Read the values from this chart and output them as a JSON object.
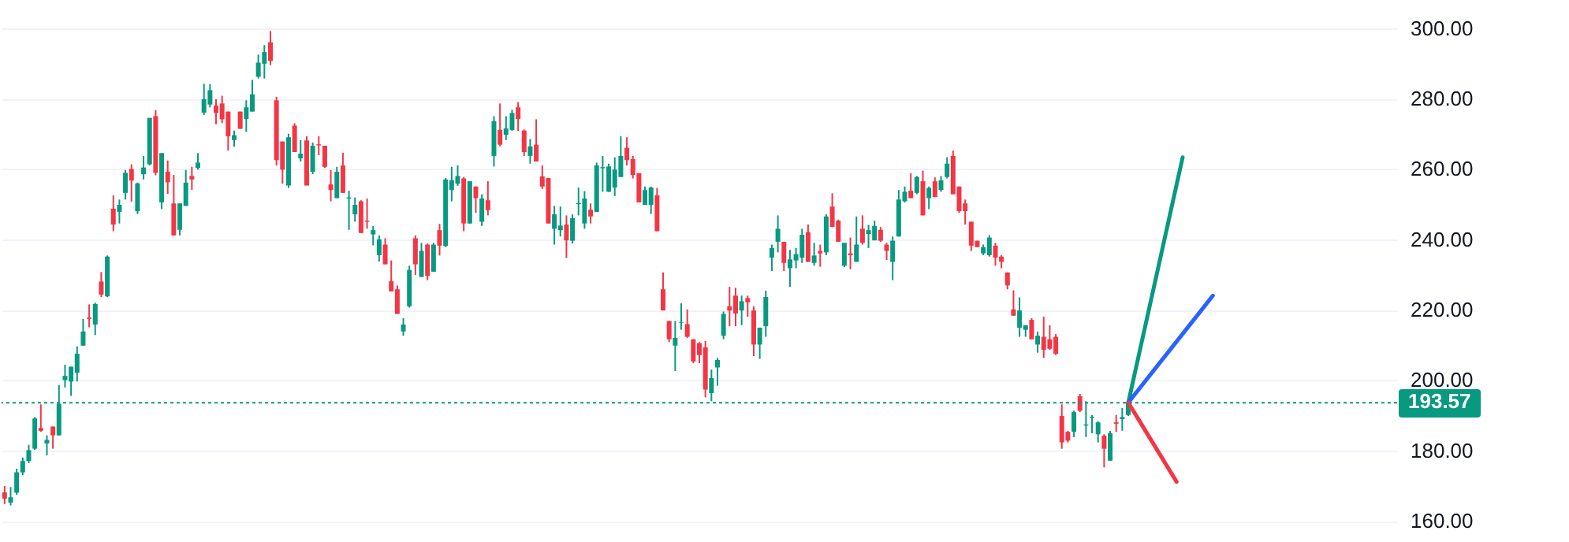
{
  "chart_data": {
    "type": "candlestick",
    "categories": [
      null,
      null,
      null,
      null,
      null,
      null,
      null,
      null,
      null,
      null,
      null,
      null,
      null,
      null,
      null,
      null,
      null,
      null,
      null,
      null,
      null,
      null,
      null,
      null,
      null,
      null,
      null,
      null,
      null,
      null,
      null,
      null,
      null,
      null,
      null,
      null,
      null,
      null,
      null,
      null,
      null,
      null,
      null,
      null,
      null,
      null,
      null,
      null,
      null,
      null,
      null,
      null,
      null,
      null,
      null,
      null,
      null,
      null,
      null,
      null,
      null,
      null,
      null,
      null,
      null,
      null,
      null,
      null,
      null,
      null,
      null,
      null,
      null,
      null,
      null,
      null,
      null,
      null,
      null,
      null,
      null,
      null,
      null,
      null,
      null,
      null,
      null,
      null,
      null,
      null,
      null,
      null,
      null,
      null,
      null,
      null,
      null,
      null,
      null,
      null,
      null,
      null,
      null,
      null,
      null,
      null,
      null,
      null,
      null,
      null,
      null,
      null,
      null,
      null,
      null,
      null,
      null,
      null,
      null,
      null,
      null,
      null,
      null,
      null,
      null,
      null,
      null,
      null,
      null,
      null,
      null,
      null,
      null,
      null,
      null,
      null,
      null,
      null,
      null,
      null,
      null,
      null,
      null,
      null,
      null,
      null,
      null,
      null,
      null,
      null,
      null,
      null,
      null,
      null,
      null,
      null,
      null,
      null,
      null,
      null,
      null,
      null,
      null,
      null,
      null,
      null,
      null,
      null,
      null,
      null,
      null,
      null,
      null,
      null,
      null,
      null,
      null,
      null,
      null,
      null,
      null,
      null,
      null,
      null,
      null,
      null,
      null,
      null,
      null,
      null,
      null,
      null,
      null,
      null,
      null,
      null,
      null,
      null,
      null,
      null,
      null,
      null,
      null,
      null,
      null,
      null,
      null,
      null,
      null,
      null,
      null,
      null,
      null,
      null,
      null,
      null,
      null,
      null,
      null,
      null,
      null,
      null,
      null,
      null,
      null,
      null,
      null,
      null,
      null,
      null,
      null
    ],
    "ohlc": [
      [
        168.1,
        169.9,
        164.8,
        166.3
      ],
      [
        165.2,
        169.6,
        164.4,
        166.7
      ],
      [
        168.0,
        174.8,
        167.4,
        173.8
      ],
      [
        173.8,
        178,
        173,
        177.0
      ],
      [
        177.0,
        181.6,
        176.4,
        180.1
      ],
      [
        180.5,
        189.5,
        180.2,
        189.1
      ],
      [
        186.4,
        193.1,
        185.3,
        185.6
      ],
      [
        182.0,
        184.3,
        178.6,
        183.0
      ],
      [
        186.8,
        186.8,
        180.5,
        184.3
      ],
      [
        184.3,
        198.6,
        184.3,
        193.3
      ],
      [
        200.0,
        204.4,
        197.9,
        201.2
      ],
      [
        199.6,
        203.8,
        195.5,
        203.8
      ],
      [
        202.1,
        209.6,
        199.6,
        207.5
      ],
      [
        209.8,
        217.4,
        209.8,
        213.8
      ],
      [
        217.8,
        221.5,
        215.0,
        217.4
      ],
      [
        215.8,
        222.0,
        212.8,
        221.6
      ],
      [
        228.0,
        230.7,
        223.6,
        224.3
      ],
      [
        223.8,
        235.4,
        223.6,
        235.1
      ],
      [
        248.7,
        252.5,
        242.3,
        244.2
      ],
      [
        247.8,
        251.3,
        244.5,
        249.8
      ],
      [
        253.2,
        259.7,
        251.3,
        258.9
      ],
      [
        260.0,
        261.3,
        250.7,
        256.7
      ],
      [
        248.0,
        256.1,
        247.2,
        255.9
      ],
      [
        258.5,
        263.7,
        257.0,
        260.4
      ],
      [
        261.3,
        274.5,
        261.0,
        274.5
      ],
      [
        275.0,
        276.7,
        258.2,
        258.9
      ],
      [
        250.5,
        264.5,
        248.6,
        264.5
      ],
      [
        259.2,
        262.4,
        252.9,
        256.2
      ],
      [
        250.2,
        258.3,
        241.1,
        241.1
      ],
      [
        242.7,
        250.2,
        241.1,
        250.2
      ],
      [
        249.5,
        259.7,
        249.5,
        256.1
      ],
      [
        258.0,
        260.6,
        254.0,
        257.0
      ],
      [
        260.3,
        264.5,
        259.8,
        261.8
      ],
      [
        276.0,
        284.2,
        275.3,
        279.8
      ],
      [
        278.3,
        284.1,
        277.5,
        282.4
      ],
      [
        278.0,
        279.8,
        272.7,
        275.9
      ],
      [
        278.6,
        280.8,
        273.0,
        274.1
      ],
      [
        276.3,
        276.3,
        265.2,
        269.3
      ],
      [
        268.2,
        270.9,
        266.3,
        269.6
      ],
      [
        276.3,
        276.3,
        271.4,
        271.4
      ],
      [
        274.2,
        279.5,
        270.5,
        277.5
      ],
      [
        276.3,
        285.3,
        276.3,
        281.2
      ],
      [
        286.2,
        292.5,
        285.7,
        290.2
      ],
      [
        289.9,
        295.2,
        285.7,
        293.2
      ],
      [
        296.0,
        299.2,
        289.5,
        290.7
      ],
      [
        279.5,
        280.5,
        261.0,
        262.5
      ],
      [
        267.8,
        267.8,
        255.8,
        259.8
      ],
      [
        255.3,
        270.0,
        254.6,
        269.0
      ],
      [
        272.3,
        273.0,
        264.8,
        264.8
      ],
      [
        263.0,
        268.2,
        262.1,
        264.3
      ],
      [
        268.1,
        269.3,
        255.3,
        255.3
      ],
      [
        259.2,
        267.5,
        258.5,
        266.6
      ],
      [
        267.0,
        269.3,
        263.9,
        266.7
      ],
      [
        266.6,
        266.6,
        260.3,
        260.6
      ],
      [
        255.6,
        259.7,
        250.8,
        254.0
      ],
      [
        251.7,
        260.6,
        251.7,
        259.2
      ],
      [
        261.0,
        264.6,
        253.2,
        253.2
      ],
      [
        251.6,
        253.8,
        242.7,
        251.9
      ],
      [
        247.1,
        251.9,
        245.0,
        249.8
      ],
      [
        250.8,
        251.1,
        241.8,
        241.8
      ],
      [
        245.3,
        251.6,
        243.0,
        245.0
      ],
      [
        241.4,
        243.8,
        238.3,
        242.6
      ],
      [
        235.5,
        241.1,
        233.7,
        240.0
      ],
      [
        238.5,
        240.3,
        232.9,
        232.9
      ],
      [
        228.1,
        234.0,
        225.2,
        225.2
      ],
      [
        225.8,
        226.9,
        218.8,
        218.8
      ],
      [
        213.8,
        217.6,
        212.6,
        215.8
      ],
      [
        221.0,
        232.5,
        220.6,
        231.3
      ],
      [
        240.3,
        241.1,
        229.9,
        232.9
      ],
      [
        229.3,
        239.0,
        229.3,
        236.7
      ],
      [
        238.5,
        238.8,
        228.4,
        229.6
      ],
      [
        230.8,
        239.0,
        230.8,
        238.5
      ],
      [
        242.6,
        244.4,
        235.4,
        238.2
      ],
      [
        238.1,
        257.4,
        237.8,
        257.0
      ],
      [
        254.0,
        260.6,
        250.8,
        256.8
      ],
      [
        255.8,
        261.0,
        255.2,
        258.0
      ],
      [
        257.3,
        257.7,
        242.3,
        244.5
      ],
      [
        244.5,
        256.5,
        244.5,
        256.5
      ],
      [
        255.0,
        255.0,
        247.5,
        251.7
      ],
      [
        245.0,
        252.8,
        243.8,
        251.6
      ],
      [
        251.1,
        256.5,
        246.8,
        248.3
      ],
      [
        263.7,
        275.0,
        260.7,
        273.6
      ],
      [
        271.1,
        278.6,
        266.4,
        266.9
      ],
      [
        269.7,
        275.0,
        268.2,
        271.5
      ],
      [
        271.1,
        276.8,
        270.8,
        275.9
      ],
      [
        277.5,
        279.0,
        270.8,
        274.2
      ],
      [
        270.9,
        271.2,
        263.7,
        264.8
      ],
      [
        263.7,
        268.5,
        261.5,
        266.4
      ],
      [
        266.9,
        274.1,
        262.1,
        262.1
      ],
      [
        257.9,
        261.0,
        254.3,
        255.0
      ],
      [
        257.4,
        257.4,
        244.5,
        244.5
      ],
      [
        243.0,
        249.5,
        238.5,
        247.1
      ],
      [
        242.6,
        249.3,
        240.8,
        243.9
      ],
      [
        244.2,
        246.8,
        234.7,
        239.7
      ],
      [
        239.6,
        247.1,
        238.8,
        246.0
      ],
      [
        250.0,
        254.7,
        246.8,
        250.3
      ],
      [
        244.5,
        253.7,
        243.0,
        251.6
      ],
      [
        248.4,
        250.2,
        244.5,
        246.5
      ],
      [
        247.8,
        261.8,
        247.8,
        261.0
      ],
      [
        260.2,
        263.7,
        253.5,
        260.5
      ],
      [
        253.5,
        261.5,
        253.5,
        260.7
      ],
      [
        254.7,
        263.3,
        252.3,
        259.8
      ],
      [
        257.7,
        269.3,
        257.7,
        263.7
      ],
      [
        266.0,
        269.0,
        261.0,
        262.5
      ],
      [
        262.8,
        263.7,
        257.3,
        258.3
      ],
      [
        258.8,
        258.8,
        250.5,
        250.5
      ],
      [
        249.8,
        255.0,
        249.8,
        254.0
      ],
      [
        249.8,
        255.0,
        247.2,
        254.7
      ],
      [
        252.5,
        254.6,
        242.3,
        242.3
      ],
      [
        225.8,
        230.6,
        219.8,
        219.8
      ],
      [
        216.8,
        216.8,
        210.8,
        211.6
      ],
      [
        209.8,
        216.8,
        202.6,
        212.0
      ],
      [
        216.3,
        221.8,
        214.3,
        216.5
      ],
      [
        215.9,
        220.1,
        212.0,
        212.3
      ],
      [
        211.6,
        211.6,
        204.8,
        205.3
      ],
      [
        210.5,
        210.8,
        204.8,
        207.1
      ],
      [
        209.3,
        211.1,
        195.1,
        197.3
      ],
      [
        196.3,
        203.0,
        194.0,
        200.6
      ],
      [
        203.6,
        206.3,
        198.4,
        205.7
      ],
      [
        212.6,
        219.5,
        211.6,
        218.8
      ],
      [
        221.0,
        226.5,
        215.3,
        219.8
      ],
      [
        224.0,
        226.2,
        215.3,
        218.9
      ],
      [
        219.8,
        224.0,
        215.6,
        222.4
      ],
      [
        223.3,
        224.0,
        218.0,
        222.1
      ],
      [
        219.8,
        221.0,
        206.8,
        210.1
      ],
      [
        210.1,
        214.9,
        206.0,
        214.9
      ],
      [
        215.3,
        225.4,
        212.3,
        223.6
      ],
      [
        234.8,
        238.5,
        231.0,
        237.5
      ],
      [
        239.3,
        246.8,
        236.3,
        243.0
      ],
      [
        239.3,
        239.3,
        231.0,
        233.3
      ],
      [
        231.8,
        237.0,
        226.5,
        234.3
      ],
      [
        234.0,
        237.5,
        231.8,
        235.8
      ],
      [
        234.8,
        243.0,
        233.3,
        241.3
      ],
      [
        242.0,
        244.2,
        233.6,
        233.6
      ],
      [
        233.3,
        239.0,
        232.5,
        235.4
      ],
      [
        236.7,
        238.5,
        232.2,
        236.0
      ],
      [
        236.3,
        247.1,
        235.5,
        246.5
      ],
      [
        249.3,
        253.1,
        243.5,
        243.5
      ],
      [
        245.3,
        245.6,
        239.3,
        239.3
      ],
      [
        232.5,
        239.0,
        232.1,
        239.0
      ],
      [
        236.0,
        240.5,
        231.5,
        235.5
      ],
      [
        233.6,
        246.5,
        233.6,
        238.5
      ],
      [
        243.0,
        246.8,
        238.5,
        239.0
      ],
      [
        241.5,
        244.1,
        237.5,
        242.6
      ],
      [
        239.7,
        245.3,
        239.7,
        243.8
      ],
      [
        242.7,
        243.5,
        239.3,
        239.6
      ],
      [
        238.5,
        239.0,
        234.1,
        236.7
      ],
      [
        233.6,
        240.8,
        228.4,
        239.6
      ],
      [
        240.8,
        254.0,
        240.8,
        251.3
      ],
      [
        250.8,
        255.0,
        250.5,
        253.5
      ],
      [
        253.8,
        258.8,
        251.7,
        251.7
      ],
      [
        253.2,
        258.0,
        252.8,
        257.7
      ],
      [
        256.5,
        259.5,
        246.8,
        246.8
      ],
      [
        251.7,
        255.0,
        248.6,
        254.6
      ],
      [
        256.5,
        257.6,
        252.0,
        252.0
      ],
      [
        254.0,
        258.0,
        253.5,
        256.8
      ],
      [
        257.7,
        263.3,
        257.3,
        261.5
      ],
      [
        263.7,
        265.2,
        252.8,
        252.8
      ],
      [
        255.0,
        255.0,
        247.5,
        248.0
      ],
      [
        250.2,
        251.3,
        244.2,
        248.0
      ],
      [
        245.0,
        245.0,
        236.7,
        238.2
      ],
      [
        239.6,
        239.6,
        237.8,
        237.8
      ],
      [
        236.0,
        238.5,
        235.5,
        237.8
      ],
      [
        235.5,
        241.2,
        235.1,
        240.5
      ],
      [
        238.2,
        239.0,
        232.5,
        234.8
      ],
      [
        235.1,
        235.5,
        231.8,
        233.6
      ],
      [
        230.6,
        230.6,
        225.8,
        226.9
      ],
      [
        220.1,
        225.5,
        218.3,
        218.3
      ],
      [
        214.9,
        223.5,
        212.3,
        219.8
      ],
      [
        214.3,
        215.6,
        212.3,
        215.6
      ],
      [
        217.1,
        217.6,
        211.6,
        211.6
      ],
      [
        210.1,
        213.8,
        207.8,
        212.6
      ],
      [
        212.3,
        218.0,
        206.3,
        208.6
      ],
      [
        211.6,
        215.6,
        208.6,
        208.9
      ],
      [
        212.3,
        213.1,
        207.1,
        207.5
      ],
      [
        189.8,
        193.1,
        180.5,
        182.3
      ],
      [
        185.3,
        185.6,
        182.3,
        182.8
      ],
      [
        185.3,
        191.3,
        183.8,
        190.9
      ],
      [
        195.4,
        196.1,
        190.9,
        191.3
      ],
      [
        187.1,
        194.0,
        183.8,
        187.4
      ],
      [
        189.3,
        190.1,
        184.9,
        189.6
      ],
      [
        184.6,
        188.3,
        182.3,
        188.0
      ],
      [
        184.2,
        184.6,
        175.2,
        180.5
      ],
      [
        177.1,
        185.6,
        177.1,
        184.9
      ],
      [
        188.0,
        190.1,
        185.3,
        187.6
      ],
      [
        188.9,
        192.1,
        185.6,
        189.5
      ],
      [
        190.1,
        194.3,
        189.8,
        193.57
      ],
      null,
      null,
      null,
      null,
      null,
      null,
      null,
      null,
      null,
      null,
      null,
      null,
      null,
      null,
      null,
      null,
      null,
      null,
      null,
      null,
      null,
      null,
      null,
      null,
      null,
      null,
      null,
      null,
      null,
      null,
      null,
      null,
      null,
      null,
      null,
      null,
      null,
      null,
      null,
      null,
      null,
      null,
      null,
      null
    ],
    "colors": [
      "#f23645",
      "#089981",
      "#089981",
      "#089981",
      "#089981",
      "#089981",
      "#f23645",
      "#089981",
      "#f23645",
      "#089981",
      "#089981",
      "#089981",
      "#089981",
      "#089981",
      "#f23645",
      "#089981",
      "#f23645",
      "#089981",
      "#f23645",
      "#089981",
      "#089981",
      "#f23645",
      "#089981",
      "#089981",
      "#089981",
      "#f23645",
      "#089981",
      "#f23645",
      "#f23645",
      "#089981",
      "#089981",
      "#f23645",
      "#089981",
      "#089981",
      "#089981",
      "#f23645",
      "#f23645",
      "#f23645",
      "#089981",
      "#f23645",
      "#089981",
      "#089981",
      "#089981",
      "#089981",
      "#f23645",
      "#f23645",
      "#f23645",
      "#089981",
      "#f23645",
      "#089981",
      "#f23645",
      "#089981",
      "#f23645",
      "#f23645",
      "#f23645",
      "#089981",
      "#f23645",
      "#089981",
      "#089981",
      "#f23645",
      "#f23645",
      "#089981",
      "#089981",
      "#f23645",
      "#f23645",
      "#f23645",
      "#089981",
      "#089981",
      "#f23645",
      "#089981",
      "#f23645",
      "#089981",
      "#f23645",
      "#089981",
      "#089981",
      "#089981",
      "#f23645",
      "#089981",
      "#f23645",
      "#089981",
      "#f23645",
      "#089981",
      "#f23645",
      "#089981",
      "#089981",
      "#f23645",
      "#f23645",
      "#089981",
      "#f23645",
      "#f23645",
      "#f23645",
      "#089981",
      "#089981",
      "#f23645",
      "#089981",
      "#089981",
      "#089981",
      "#f23645",
      "#089981",
      "#089981",
      "#089981",
      "#089981",
      "#089981",
      "#f23645",
      "#f23645",
      "#f23645",
      "#089981",
      "#089981",
      "#f23645",
      "#f23645",
      "#f23645",
      "#089981",
      "#089981",
      "#f23645",
      "#f23645",
      "#f23645",
      "#f23645",
      "#089981",
      "#089981",
      "#089981",
      "#f23645",
      "#f23645",
      "#089981",
      "#f23645",
      "#f23645",
      "#089981",
      "#089981",
      "#089981",
      "#089981",
      "#f23645",
      "#089981",
      "#089981",
      "#089981",
      "#f23645",
      "#089981",
      "#f23645",
      "#089981",
      "#f23645",
      "#f23645",
      "#089981",
      "#f23645",
      "#089981",
      "#f23645",
      "#089981",
      "#089981",
      "#f23645",
      "#f23645",
      "#089981",
      "#089981",
      "#089981",
      "#f23645",
      "#089981",
      "#f23645",
      "#089981",
      "#f23645",
      "#089981",
      "#089981",
      "#f23645",
      "#f23645",
      "#f23645",
      "#f23645",
      "#f23645",
      "#089981",
      "#089981",
      "#f23645",
      "#f23645",
      "#f23645",
      "#f23645",
      "#089981",
      "#089981",
      "#f23645",
      "#089981",
      "#f23645",
      "#f23645",
      "#f23645",
      "#f23645",
      "#f23645",
      "#089981",
      "#f23645",
      "#089981",
      "#089981",
      "#089981",
      "#f23645",
      "#089981",
      "#f23645",
      "#089981",
      "#089981",
      null,
      null,
      null,
      null,
      null,
      null,
      null,
      null,
      null,
      null,
      null,
      null,
      null,
      null,
      null,
      null,
      null,
      null,
      null,
      null,
      null,
      null,
      null,
      null,
      null,
      null,
      null,
      null,
      null,
      null,
      null,
      null,
      null,
      null,
      null,
      null,
      null,
      null,
      null,
      null,
      null,
      null,
      null,
      null
    ],
    "series": [
      {
        "type": "line",
        "color": "#089981",
        "values": [
          null,
          null,
          null,
          null,
          null,
          null,
          null,
          null,
          null,
          null,
          null,
          null,
          null,
          null,
          null,
          null,
          null,
          null,
          null,
          null,
          null,
          null,
          null,
          null,
          null,
          null,
          null,
          null,
          null,
          null,
          null,
          null,
          null,
          null,
          null,
          null,
          null,
          null,
          null,
          null,
          null,
          null,
          null,
          null,
          null,
          null,
          null,
          null,
          null,
          null,
          null,
          null,
          null,
          null,
          null,
          null,
          null,
          null,
          null,
          null,
          null,
          null,
          null,
          null,
          null,
          null,
          null,
          null,
          null,
          null,
          null,
          null,
          null,
          null,
          null,
          null,
          null,
          null,
          null,
          null,
          null,
          null,
          null,
          null,
          null,
          null,
          null,
          null,
          null,
          null,
          null,
          null,
          null,
          null,
          null,
          null,
          null,
          null,
          null,
          null,
          null,
          null,
          null,
          null,
          null,
          null,
          null,
          null,
          null,
          null,
          null,
          null,
          null,
          null,
          null,
          null,
          null,
          null,
          null,
          null,
          null,
          null,
          null,
          null,
          null,
          null,
          null,
          null,
          null,
          null,
          null,
          null,
          null,
          null,
          null,
          null,
          null,
          null,
          null,
          null,
          null,
          null,
          null,
          null,
          null,
          null,
          null,
          null,
          null,
          null,
          null,
          null,
          null,
          null,
          null,
          null,
          null,
          null,
          null,
          null,
          null,
          null,
          null,
          null,
          null,
          null,
          null,
          null,
          null,
          null,
          null,
          null,
          null,
          null,
          null,
          null,
          null,
          null,
          null,
          null,
          null,
          null,
          null,
          null,
          null,
          null,
          193.6,
          null,
          null,
          null,
          null,
          null,
          null,
          null,
          null,
          263.3,
          null,
          null,
          null,
          null,
          null,
          null,
          null,
          null,
          null,
          null,
          null,
          null,
          null,
          null,
          null,
          null,
          null,
          null,
          null,
          null,
          null,
          null,
          null,
          null,
          null,
          null,
          null,
          null,
          null,
          null,
          null,
          null,
          null,
          null,
          null
        ]
      },
      {
        "type": "line",
        "color": "#2962ff",
        "values": [
          null,
          null,
          null,
          null,
          null,
          null,
          null,
          null,
          null,
          null,
          null,
          null,
          null,
          null,
          null,
          null,
          null,
          null,
          null,
          null,
          null,
          null,
          null,
          null,
          null,
          null,
          null,
          null,
          null,
          null,
          null,
          null,
          null,
          null,
          null,
          null,
          null,
          null,
          null,
          null,
          null,
          null,
          null,
          null,
          null,
          null,
          null,
          null,
          null,
          null,
          null,
          null,
          null,
          null,
          null,
          null,
          null,
          null,
          null,
          null,
          null,
          null,
          null,
          null,
          null,
          null,
          null,
          null,
          null,
          null,
          null,
          null,
          null,
          null,
          null,
          null,
          null,
          null,
          null,
          null,
          null,
          null,
          null,
          null,
          null,
          null,
          null,
          null,
          null,
          null,
          null,
          null,
          null,
          null,
          null,
          null,
          null,
          null,
          null,
          null,
          null,
          null,
          null,
          null,
          null,
          null,
          null,
          null,
          null,
          null,
          null,
          null,
          null,
          null,
          null,
          null,
          null,
          null,
          null,
          null,
          null,
          null,
          null,
          null,
          null,
          null,
          null,
          null,
          null,
          null,
          null,
          null,
          null,
          null,
          null,
          null,
          null,
          null,
          null,
          null,
          null,
          null,
          null,
          null,
          null,
          null,
          null,
          null,
          null,
          null,
          null,
          null,
          null,
          null,
          null,
          null,
          null,
          null,
          null,
          null,
          null,
          null,
          null,
          null,
          null,
          null,
          null,
          null,
          null,
          null,
          null,
          null,
          null,
          null,
          null,
          null,
          null,
          null,
          null,
          null,
          null,
          null,
          null,
          null,
          null,
          null,
          193.6,
          null,
          null,
          null,
          null,
          null,
          null,
          null,
          null,
          null,
          null,
          null,
          null,
          null,
          224.0,
          null,
          null,
          null,
          null,
          null,
          null,
          null,
          null,
          null,
          null,
          null,
          null,
          null,
          null,
          null,
          null,
          null,
          null,
          null,
          null,
          null,
          null,
          null,
          null,
          null,
          null,
          null,
          null,
          null,
          null
        ]
      },
      {
        "type": "line",
        "color": "#f23645",
        "values": [
          null,
          null,
          null,
          null,
          null,
          null,
          null,
          null,
          null,
          null,
          null,
          null,
          null,
          null,
          null,
          null,
          null,
          null,
          null,
          null,
          null,
          null,
          null,
          null,
          null,
          null,
          null,
          null,
          null,
          null,
          null,
          null,
          null,
          null,
          null,
          null,
          null,
          null,
          null,
          null,
          null,
          null,
          null,
          null,
          null,
          null,
          null,
          null,
          null,
          null,
          null,
          null,
          null,
          null,
          null,
          null,
          null,
          null,
          null,
          null,
          null,
          null,
          null,
          null,
          null,
          null,
          null,
          null,
          null,
          null,
          null,
          null,
          null,
          null,
          null,
          null,
          null,
          null,
          null,
          null,
          null,
          null,
          null,
          null,
          null,
          null,
          null,
          null,
          null,
          null,
          null,
          null,
          null,
          null,
          null,
          null,
          null,
          null,
          null,
          null,
          null,
          null,
          null,
          null,
          null,
          null,
          null,
          null,
          null,
          null,
          null,
          null,
          null,
          null,
          null,
          null,
          null,
          null,
          null,
          null,
          null,
          null,
          null,
          null,
          null,
          null,
          null,
          null,
          null,
          null,
          null,
          null,
          null,
          null,
          null,
          null,
          null,
          null,
          null,
          null,
          null,
          null,
          null,
          null,
          null,
          null,
          null,
          null,
          null,
          null,
          null,
          null,
          null,
          null,
          null,
          null,
          null,
          null,
          null,
          null,
          null,
          null,
          null,
          null,
          null,
          null,
          null,
          null,
          null,
          null,
          null,
          null,
          null,
          null,
          null,
          null,
          null,
          null,
          null,
          null,
          null,
          null,
          null,
          null,
          null,
          null,
          193.6,
          null,
          null,
          null,
          null,
          null,
          null,
          null,
          171.1,
          null,
          null,
          null,
          null,
          null,
          null,
          null,
          null,
          null,
          null,
          null,
          null,
          null,
          null,
          null,
          null,
          null,
          null,
          null,
          null,
          null,
          null,
          null,
          null,
          null,
          null,
          null,
          null,
          null,
          null,
          null,
          null,
          null,
          null,
          null,
          null
        ]
      }
    ],
    "ylim": [
      154,
      308
    ],
    "yticks": [
      {
        "value": 160,
        "label": "160.00"
      },
      {
        "value": 180,
        "label": "180.00"
      },
      {
        "value": 200,
        "label": "200.00"
      },
      {
        "value": 220,
        "label": "220.00"
      },
      {
        "value": 240,
        "label": "240.00"
      },
      {
        "value": 260,
        "label": "260.00"
      },
      {
        "value": 280,
        "label": "280.00"
      },
      {
        "value": 300,
        "label": "300.00"
      }
    ],
    "grid": "y",
    "ref_lines": [
      {
        "axis": "y",
        "value": 193.57,
        "label": "193.57",
        "color": "#089981",
        "line_style": "dotted"
      }
    ]
  }
}
